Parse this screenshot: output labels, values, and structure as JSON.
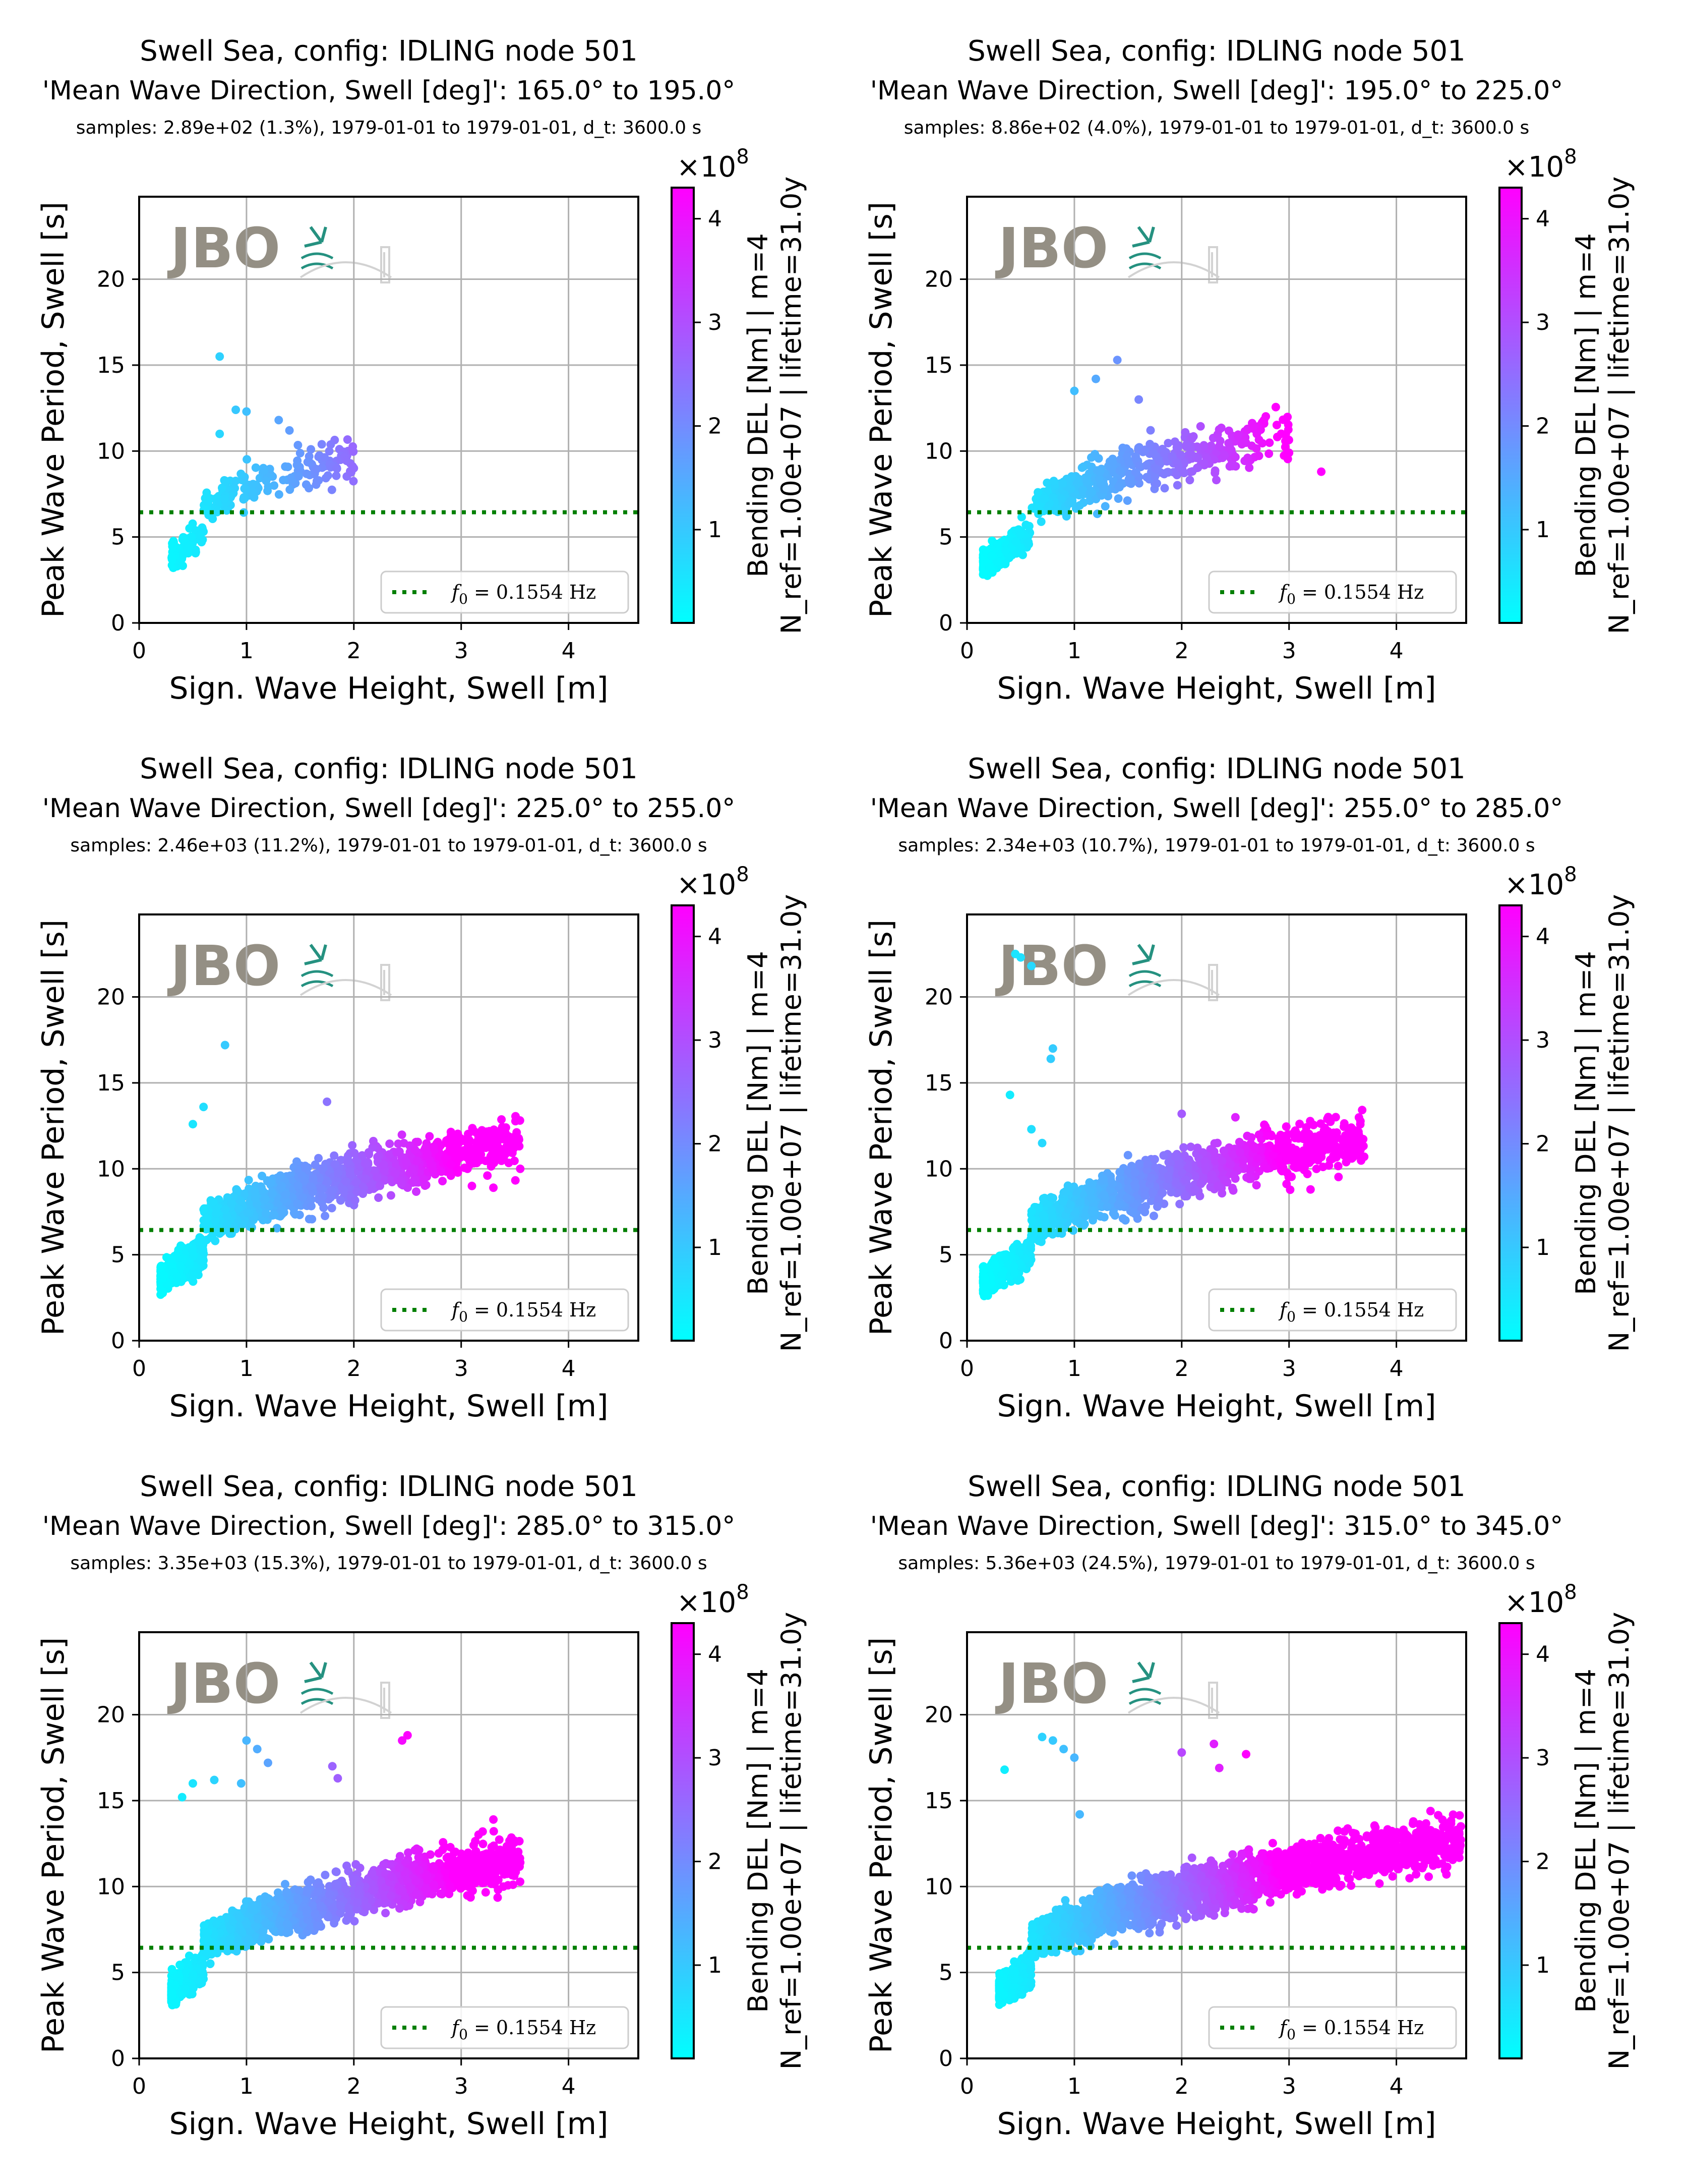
{
  "colors": {
    "cmap_low": "#00ffff",
    "cmap_high": "#ff00ff",
    "f0_line": "#007f00",
    "grid": "#b0b0b0",
    "logo_text": "#8f8a7e",
    "logo_accent": "#1a8c7a"
  },
  "logo": {
    "text": "JBO"
  },
  "legend": {
    "label": "f",
    "sub": "0",
    "rest": " = 0.1554 Hz"
  },
  "colorbar": {
    "label_line1": "Bending DEL [Nm] | m=4",
    "label_line2": "N_ref=1.00e+07 | lifetime=31.0y",
    "exponent_base": "×10",
    "exponent_power": "8",
    "ticks": [
      "1",
      "2",
      "3",
      "4"
    ],
    "range": [
      0.1,
      4.3
    ]
  },
  "chart_data": [
    {
      "type": "scatter",
      "title": "Swell Sea, config: IDLING node 501",
      "subtitle": "'Mean Wave Direction, Swell [deg]': 165.0° to 195.0°",
      "info": "samples: 2.89e+02 (1.3%), 1979-01-01 to 1979-01-01, d_t: 3600.0 s",
      "xlabel": "Sign. Wave Height, Swell [m]",
      "ylabel": "Peak Wave Period, Swell [s]",
      "xlim": [
        0,
        4.65
      ],
      "ylim": [
        0,
        24.8
      ],
      "xticks": [
        "0",
        "1",
        "2",
        "3",
        "4"
      ],
      "yticks": [
        "0",
        "5",
        "10",
        "15",
        "20"
      ],
      "grid": true,
      "legend_position": "lower-right",
      "f0_period": 6.44,
      "cluster": {
        "hmin": 0.3,
        "hmax": 2.0,
        "n": 260,
        "seed": 11
      },
      "extra_points": [
        [
          0.75,
          15.5
        ],
        [
          0.9,
          12.4
        ],
        [
          1.0,
          12.3
        ],
        [
          1.3,
          11.8
        ],
        [
          1.6,
          10.1
        ],
        [
          2.0,
          9.0
        ],
        [
          0.75,
          11.0
        ],
        [
          1.4,
          11.2
        ]
      ]
    },
    {
      "type": "scatter",
      "title": "Swell Sea, config: IDLING node 501",
      "subtitle": "'Mean Wave Direction, Swell [deg]': 195.0° to 225.0°",
      "info": "samples: 8.86e+02 (4.0%), 1979-01-01 to 1979-01-01, d_t: 3600.0 s",
      "xlabel": "Sign. Wave Height, Swell [m]",
      "ylabel": "Peak Wave Period, Swell [s]",
      "xlim": [
        0,
        4.65
      ],
      "ylim": [
        0,
        24.8
      ],
      "xticks": [
        "0",
        "1",
        "2",
        "3",
        "4"
      ],
      "yticks": [
        "0",
        "5",
        "10",
        "15",
        "20"
      ],
      "grid": true,
      "legend_position": "lower-right",
      "f0_period": 6.44,
      "cluster": {
        "hmin": 0.15,
        "hmax": 3.0,
        "n": 700,
        "seed": 23
      },
      "extra_points": [
        [
          1.4,
          15.3
        ],
        [
          1.2,
          14.2
        ],
        [
          1.6,
          13.0
        ],
        [
          3.3,
          8.8
        ],
        [
          3.0,
          9.9
        ],
        [
          2.7,
          11.0
        ],
        [
          1.0,
          13.5
        ]
      ]
    },
    {
      "type": "scatter",
      "title": "Swell Sea, config: IDLING node 501",
      "subtitle": "'Mean Wave Direction, Swell [deg]': 225.0° to 255.0°",
      "info": "samples: 2.46e+03 (11.2%), 1979-01-01 to 1979-01-01, d_t: 3600.0 s",
      "xlabel": "Sign. Wave Height, Swell [m]",
      "ylabel": "Peak Wave Period, Swell [s]",
      "xlim": [
        0,
        4.65
      ],
      "ylim": [
        0,
        24.8
      ],
      "xticks": [
        "0",
        "1",
        "2",
        "3",
        "4"
      ],
      "yticks": [
        "0",
        "5",
        "10",
        "15",
        "20"
      ],
      "grid": true,
      "legend_position": "lower-right",
      "f0_period": 6.44,
      "cluster": {
        "hmin": 0.2,
        "hmax": 3.55,
        "n": 1500,
        "seed": 37
      },
      "extra_points": [
        [
          0.8,
          17.2
        ],
        [
          0.6,
          13.6
        ],
        [
          1.75,
          13.9
        ],
        [
          3.55,
          10.0
        ],
        [
          3.3,
          8.9
        ],
        [
          3.1,
          9.0
        ],
        [
          2.9,
          11.0
        ],
        [
          0.5,
          12.6
        ]
      ]
    },
    {
      "type": "scatter",
      "title": "Swell Sea, config: IDLING node 501",
      "subtitle": "'Mean Wave Direction, Swell [deg]': 255.0° to 285.0°",
      "info": "samples: 2.34e+03 (10.7%), 1979-01-01 to 1979-01-01, d_t: 3600.0 s",
      "xlabel": "Sign. Wave Height, Swell [m]",
      "ylabel": "Peak Wave Period, Swell [s]",
      "xlim": [
        0,
        4.65
      ],
      "ylim": [
        0,
        24.8
      ],
      "xticks": [
        "0",
        "1",
        "2",
        "3",
        "4"
      ],
      "yticks": [
        "0",
        "5",
        "10",
        "15",
        "20"
      ],
      "grid": true,
      "legend_position": "lower-right",
      "f0_period": 6.44,
      "cluster": {
        "hmin": 0.15,
        "hmax": 3.7,
        "n": 1500,
        "seed": 51
      },
      "extra_points": [
        [
          0.5,
          22.3
        ],
        [
          0.6,
          21.8
        ],
        [
          0.45,
          22.5
        ],
        [
          0.8,
          17.0
        ],
        [
          0.78,
          16.4
        ],
        [
          2.0,
          13.2
        ],
        [
          2.5,
          13.0
        ],
        [
          3.7,
          10.7
        ],
        [
          3.6,
          11.0
        ],
        [
          3.2,
          8.8
        ],
        [
          0.4,
          14.3
        ],
        [
          0.6,
          12.3
        ],
        [
          0.7,
          11.5
        ]
      ]
    },
    {
      "type": "scatter",
      "title": "Swell Sea, config: IDLING node 501",
      "subtitle": "'Mean Wave Direction, Swell [deg]': 285.0° to 315.0°",
      "info": "samples: 3.35e+03 (15.3%), 1979-01-01 to 1979-01-01, d_t: 3600.0 s",
      "xlabel": "Sign. Wave Height, Swell [m]",
      "ylabel": "Peak Wave Period, Swell [s]",
      "xlim": [
        0,
        4.65
      ],
      "ylim": [
        0,
        24.8
      ],
      "xticks": [
        "0",
        "1",
        "2",
        "3",
        "4"
      ],
      "yticks": [
        "0",
        "5",
        "10",
        "15",
        "20"
      ],
      "grid": true,
      "legend_position": "lower-right",
      "f0_period": 6.44,
      "cluster": {
        "hmin": 0.3,
        "hmax": 3.55,
        "n": 1900,
        "seed": 67
      },
      "extra_points": [
        [
          1.0,
          18.5
        ],
        [
          1.1,
          18.0
        ],
        [
          1.2,
          17.2
        ],
        [
          0.95,
          16.0
        ],
        [
          0.7,
          16.2
        ],
        [
          0.5,
          16.0
        ],
        [
          1.8,
          17.0
        ],
        [
          1.85,
          16.3
        ],
        [
          2.45,
          18.5
        ],
        [
          2.5,
          18.8
        ],
        [
          3.3,
          13.9
        ],
        [
          3.2,
          13.2
        ],
        [
          3.55,
          11.4
        ],
        [
          0.4,
          15.2
        ]
      ]
    },
    {
      "type": "scatter",
      "title": "Swell Sea, config: IDLING node 501",
      "subtitle": "'Mean Wave Direction, Swell [deg]': 315.0° to 345.0°",
      "info": "samples: 5.36e+03 (24.5%), 1979-01-01 to 1979-01-01, d_t: 3600.0 s",
      "xlabel": "Sign. Wave Height, Swell [m]",
      "ylabel": "Peak Wave Period, Swell [s]",
      "xlim": [
        0,
        4.65
      ],
      "ylim": [
        0,
        24.8
      ],
      "xticks": [
        "0",
        "1",
        "2",
        "3",
        "4"
      ],
      "yticks": [
        "0",
        "5",
        "10",
        "15",
        "20"
      ],
      "grid": true,
      "legend_position": "lower-right",
      "f0_period": 6.44,
      "cluster": {
        "hmin": 0.3,
        "hmax": 4.6,
        "n": 2600,
        "seed": 83
      },
      "extra_points": [
        [
          0.7,
          18.7
        ],
        [
          0.8,
          18.5
        ],
        [
          0.9,
          18.0
        ],
        [
          1.0,
          17.5
        ],
        [
          2.0,
          17.8
        ],
        [
          2.3,
          18.3
        ],
        [
          2.6,
          17.7
        ],
        [
          2.35,
          16.9
        ],
        [
          4.6,
          13.5
        ],
        [
          4.5,
          13.3
        ],
        [
          0.35,
          16.8
        ],
        [
          1.05,
          14.2
        ]
      ]
    }
  ]
}
